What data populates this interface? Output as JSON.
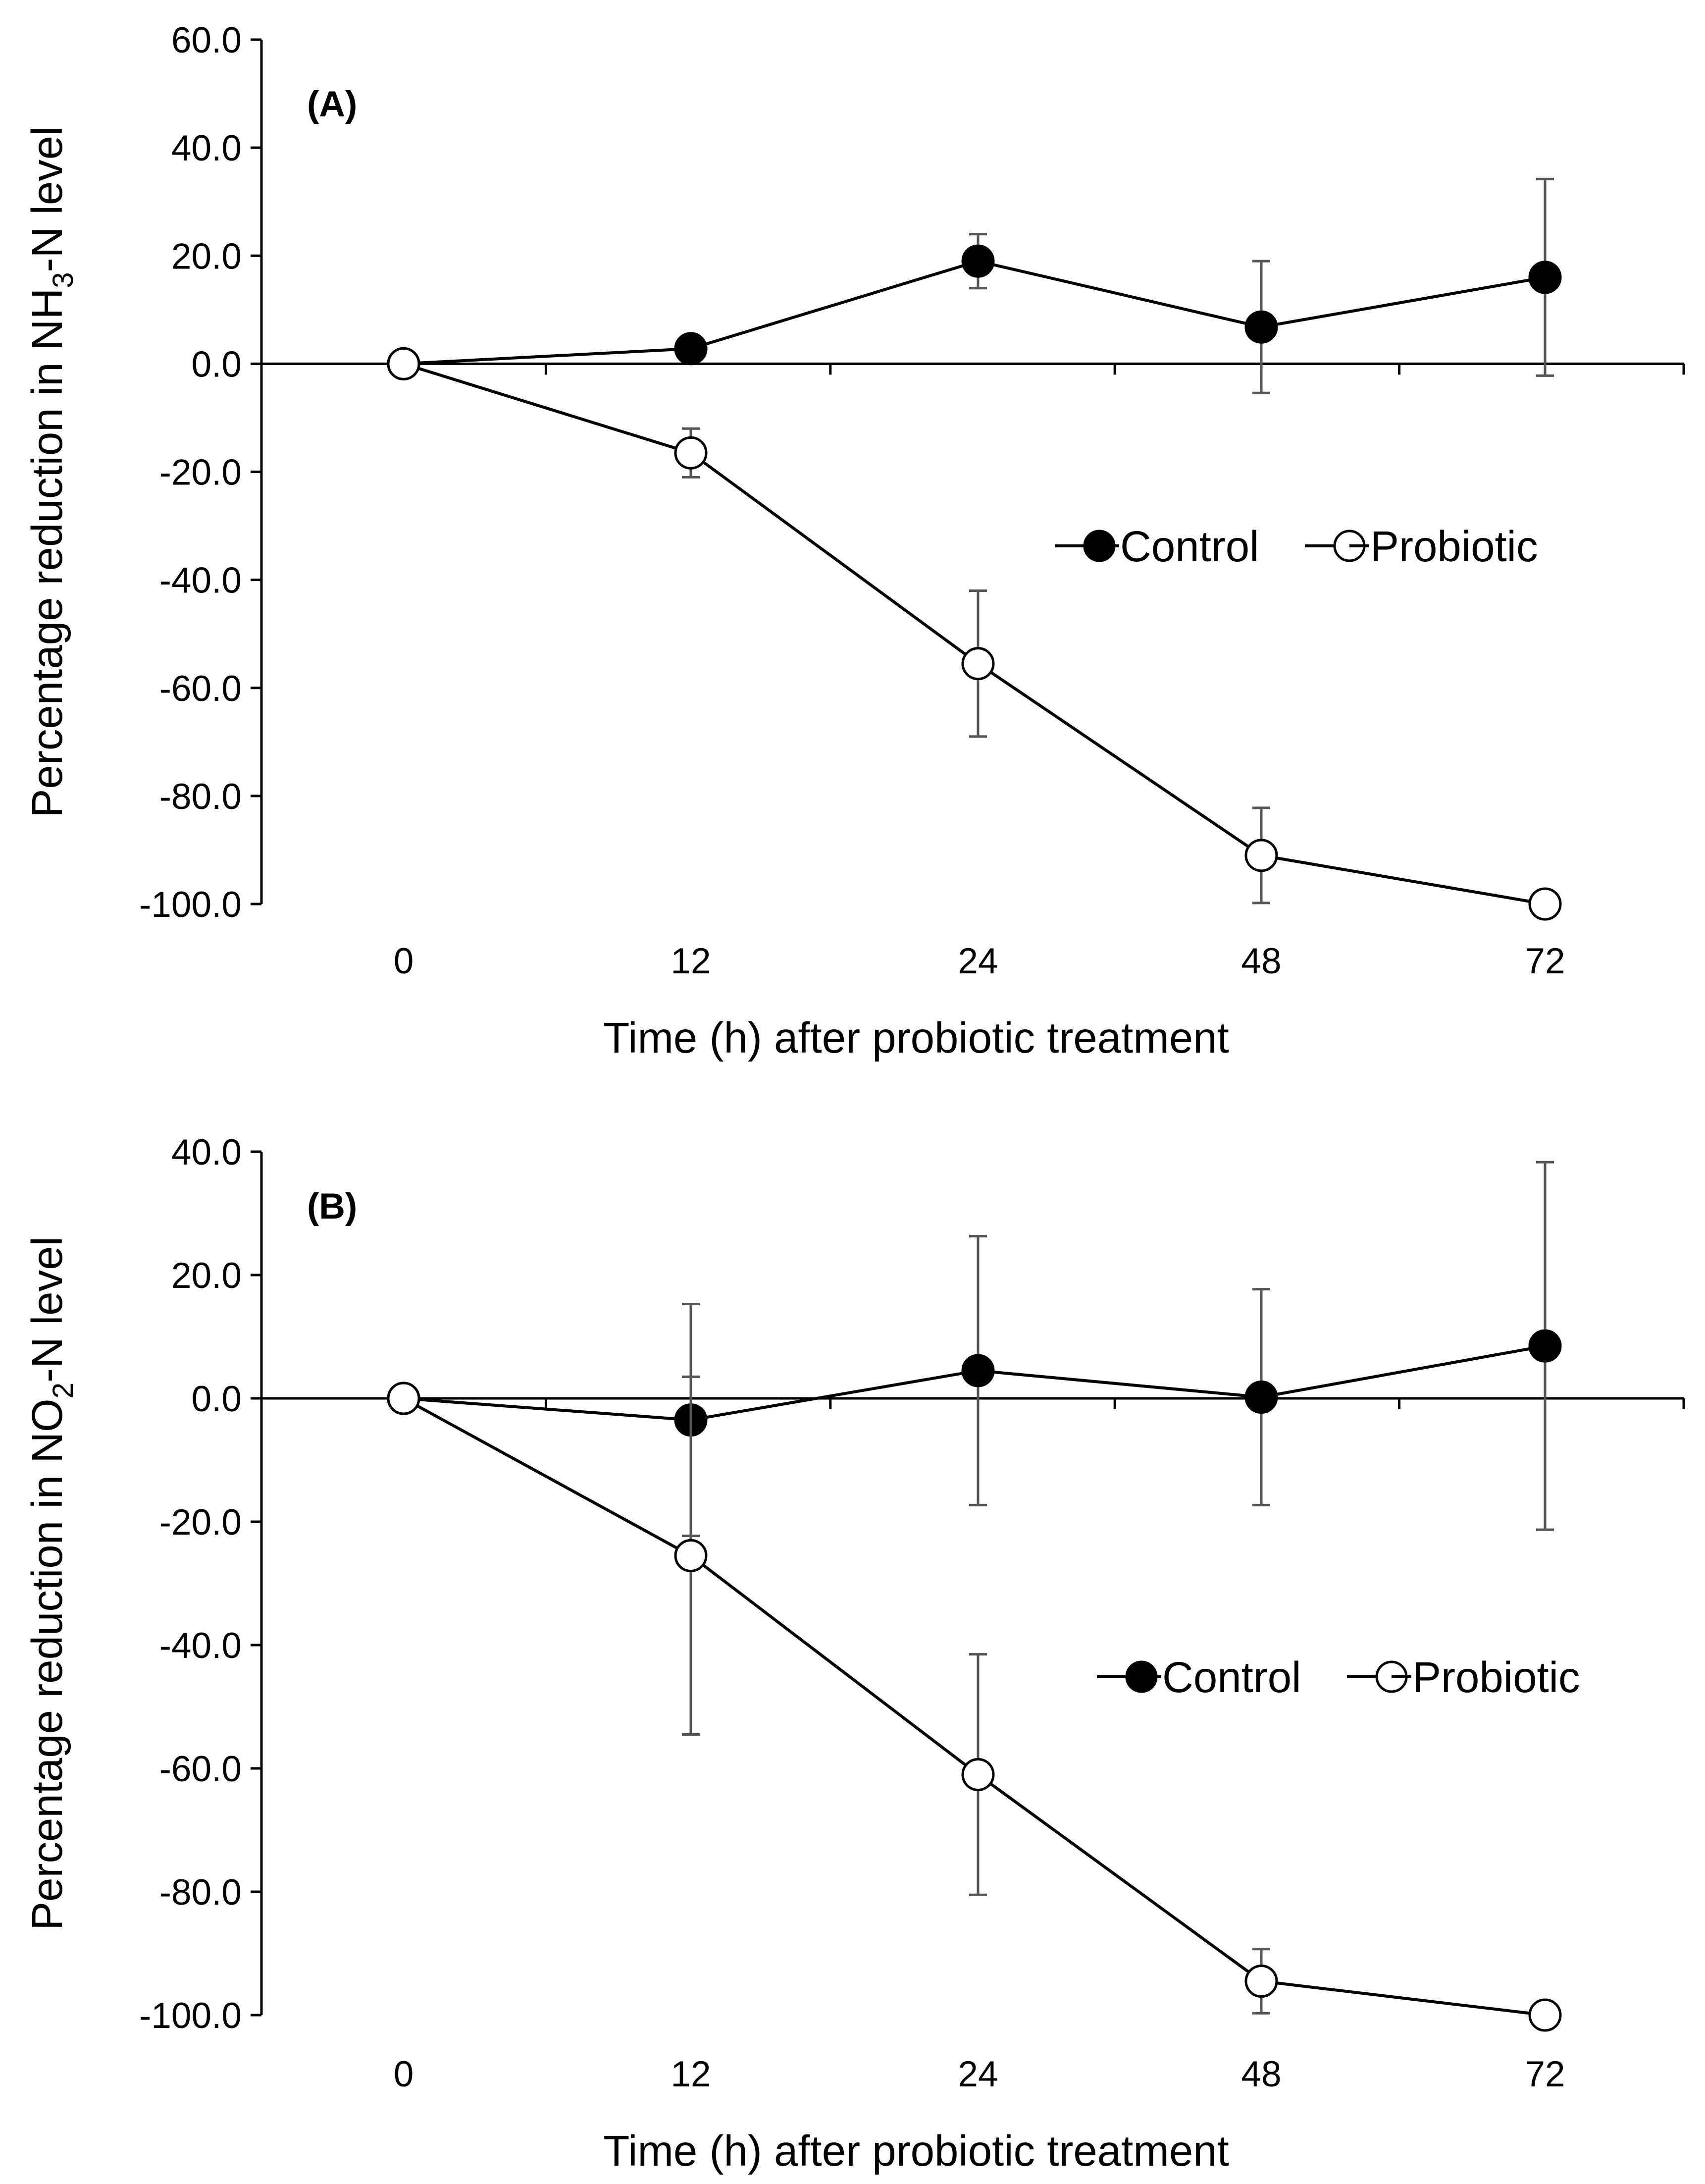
{
  "chart_data": [
    {
      "type": "line",
      "panel_label": "(A)",
      "title": "",
      "xlabel": "Time (h) after probiotic treatment",
      "ylabel_parts": [
        "Percentage reduction in NH",
        "3",
        "-N level"
      ],
      "categories": [
        "0",
        "12",
        "24",
        "48",
        "72"
      ],
      "ylim": [
        -100,
        60
      ],
      "ytick_step": 20,
      "y_tick_labels": [
        "60.0",
        "40.0",
        "20.0",
        "0.0",
        "-20.0",
        "-40.0",
        "-60.0",
        "-80.0",
        "-100.0"
      ],
      "grid": false,
      "legend_position": "right",
      "series": [
        {
          "name": "Control",
          "marker": "filled-circle",
          "values": [
            0.0,
            2.8,
            19.0,
            6.8,
            16.0
          ],
          "error": [
            0,
            0,
            5.0,
            12.2,
            18.2
          ]
        },
        {
          "name": "Probiotic",
          "marker": "open-circle",
          "values": [
            0.0,
            -16.5,
            -55.5,
            -91.0,
            -100.0
          ],
          "error": [
            0,
            4.5,
            13.5,
            8.8,
            0
          ]
        }
      ]
    },
    {
      "type": "line",
      "panel_label": "(B)",
      "title": "",
      "xlabel": "Time (h) after probiotic treatment",
      "ylabel_parts": [
        "Percentage reduction in NO",
        "2",
        "-N level"
      ],
      "categories": [
        "0",
        "12",
        "24",
        "48",
        "72"
      ],
      "ylim": [
        -100,
        40
      ],
      "ytick_step": 20,
      "y_tick_labels": [
        "40.0",
        "20.0",
        "0.0",
        "-20.0",
        "-40.0",
        "-60.0",
        "-80.0",
        "-100.0"
      ],
      "grid": false,
      "legend_position": "right",
      "series": [
        {
          "name": "Control",
          "marker": "filled-circle",
          "values": [
            0.0,
            -3.5,
            4.5,
            0.2,
            8.5
          ],
          "error": [
            0,
            18.8,
            21.8,
            17.5,
            29.8
          ]
        },
        {
          "name": "Probiotic",
          "marker": "open-circle",
          "values": [
            0.0,
            -25.5,
            -61.0,
            -94.5,
            -100.0
          ],
          "error": [
            0,
            29.0,
            19.5,
            5.2,
            0
          ]
        }
      ]
    }
  ]
}
